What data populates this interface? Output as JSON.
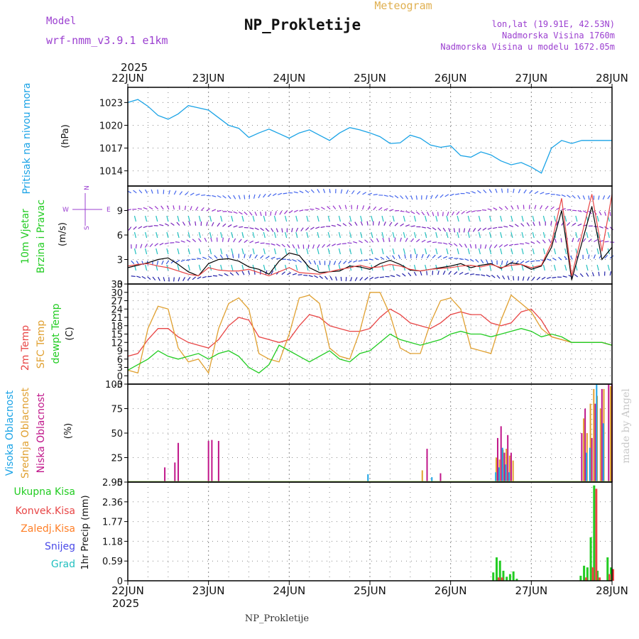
{
  "header": {
    "model_label": "Model",
    "model_name": "wrf-nmm_v3.9.1 e1km",
    "title": "NP_Prokletije",
    "product": "Meteogram",
    "lonlat": "lon,lat (19.91E, 42.53N)",
    "altitude": "Nadmorska Visina 1760m",
    "model_altitude": "Nadmorska Visina u modelu 1672.05m",
    "year": "2025",
    "footer_title": "NP_Prokletije",
    "credit": "made by Angel"
  },
  "colors": {
    "pressure": "#1aa3e6",
    "temp2m": "#e84545",
    "sfc_temp": "#e0a030",
    "dewpoint": "#22cc22",
    "wind_speed": "#000000",
    "gust": "#e84545",
    "high_cloud": "#1aa3e6",
    "mid_cloud": "#e0a030",
    "low_cloud": "#c0168a",
    "total_precip": "#22cc22",
    "conv_precip": "#e84545",
    "strat_precip": "#ff7f27",
    "snow": "#4a4ae8",
    "hail": "#22c0c0",
    "title_purple": "#9b3fd0"
  },
  "chart_data": [
    {
      "id": "pressure",
      "type": "line",
      "ylabel": "Pritisak na nivou mora",
      "unit": "(hPa)",
      "ylim": [
        1012,
        1025
      ],
      "yticks": [
        1014,
        1017,
        1020,
        1023
      ],
      "x_ticks": [
        "22JUN",
        "23JUN",
        "24JUN",
        "25JUN",
        "26JUN",
        "27JUN",
        "28JUN"
      ],
      "x_hours": [
        0,
        3,
        6,
        9,
        12,
        15,
        18,
        21,
        24,
        27,
        30,
        33,
        36,
        39,
        42,
        45,
        48,
        51,
        54,
        57,
        60,
        63,
        66,
        69,
        72,
        75,
        78,
        81,
        84,
        87,
        90,
        93,
        96,
        99,
        102,
        105,
        108,
        111,
        114,
        117,
        120,
        123,
        126,
        129,
        132,
        135,
        138,
        141,
        144
      ],
      "series": [
        {
          "values": [
            1023.0,
            1023.4,
            1022.5,
            1021.3,
            1020.8,
            1021.5,
            1022.6,
            1022.3,
            1022.0,
            1021.0,
            1020.0,
            1019.6,
            1018.4,
            1019.0,
            1019.5,
            1018.9,
            1018.3,
            1019.0,
            1019.4,
            1018.7,
            1018.0,
            1019.0,
            1019.7,
            1019.4,
            1019.0,
            1018.5,
            1017.6,
            1017.7,
            1018.7,
            1018.3,
            1017.4,
            1017.1,
            1017.3,
            1016.0,
            1015.8,
            1016.5,
            1016.1,
            1015.3,
            1014.8,
            1015.1,
            1014.5,
            1013.7,
            1017.0,
            1018.0,
            1017.6,
            1018.0,
            1018.0,
            1018.0,
            1018.0
          ]
        }
      ]
    },
    {
      "id": "wind",
      "type": "line",
      "ylabel": [
        "10m Vjetar",
        "Brzina i Pravac"
      ],
      "unit": "(m/s)",
      "ylim": [
        0,
        12
      ],
      "yticks": [
        0,
        3,
        6,
        9
      ],
      "compass": {
        "w": "W",
        "e": "E",
        "n": "N",
        "s": "S"
      },
      "series": [
        {
          "name": "speed",
          "values": [
            2.0,
            2.3,
            2.6,
            3.0,
            3.2,
            2.4,
            1.5,
            1.0,
            2.5,
            3.0,
            3.1,
            2.8,
            2.1,
            1.8,
            1.2,
            2.8,
            3.8,
            3.5,
            2.0,
            1.4,
            1.5,
            1.6,
            2.2,
            2.1,
            1.8,
            2.5,
            2.9,
            2.4,
            1.7,
            1.6,
            1.8,
            2.0,
            2.2,
            2.5,
            2.0,
            2.3,
            2.5,
            1.9,
            2.6,
            2.4,
            1.8,
            2.2,
            4.5,
            9.0,
            0.5,
            5.0,
            9.5,
            3.0,
            4.5
          ]
        },
        {
          "name": "gust",
          "values": [
            2.2,
            2.4,
            2.5,
            2.2,
            2.0,
            1.6,
            1.2,
            1.0,
            2.0,
            1.7,
            1.6,
            1.6,
            1.8,
            1.4,
            1.0,
            1.5,
            2.0,
            1.4,
            1.3,
            1.2,
            1.5,
            1.8,
            2.0,
            2.3,
            2.0,
            2.1,
            2.4,
            2.2,
            1.8,
            1.6,
            1.8,
            1.9,
            2.0,
            2.2,
            2.3,
            2.1,
            2.4,
            2.0,
            2.3,
            2.4,
            2.0,
            2.3,
            5.0,
            10.5,
            1.0,
            6.0,
            11.0,
            4.0,
            11.0
          ]
        }
      ],
      "barb_levels": [
        {
          "level": 1,
          "color": "#2222aa"
        },
        {
          "level": 3,
          "color": "#3355dd"
        },
        {
          "level": 5,
          "color": "#8833cc"
        },
        {
          "level": 7,
          "color": "#7722bb"
        },
        {
          "level": 9,
          "color": "#9933cc"
        },
        {
          "level": 11,
          "color": "#4466ee"
        }
      ]
    },
    {
      "id": "temperature",
      "type": "line",
      "ylabel": [
        "2m Temp",
        "SFC Temp",
        "dewpt Temp"
      ],
      "unit": "(C)",
      "ylim": [
        -3,
        33
      ],
      "yticks": [
        -3,
        0,
        3,
        6,
        9,
        12,
        15,
        18,
        21,
        24,
        27,
        30,
        33
      ],
      "series": [
        {
          "name": "2m Temp",
          "values": [
            7,
            8,
            13,
            17,
            17,
            14,
            12,
            11,
            10,
            13,
            18,
            21,
            20,
            14,
            13,
            12,
            13,
            18,
            22,
            21,
            18,
            17,
            16,
            16,
            17,
            21,
            24,
            22,
            19,
            18,
            17,
            19,
            22,
            23,
            22,
            22,
            19,
            18,
            19,
            23,
            24,
            20,
            14,
            13,
            12,
            12,
            12,
            12,
            11
          ]
        },
        {
          "name": "SFC Temp",
          "values": [
            2,
            1,
            17,
            25,
            24,
            10,
            5,
            6,
            1,
            17,
            26,
            28,
            24,
            8,
            6,
            5,
            15,
            28,
            29,
            26,
            10,
            7,
            6,
            16,
            30,
            30,
            22,
            10,
            8,
            8,
            19,
            27,
            28,
            24,
            10,
            9,
            8,
            20,
            29,
            26,
            23,
            17,
            14,
            13,
            12,
            12,
            12,
            12,
            11
          ]
        },
        {
          "name": "dewpt Temp",
          "values": [
            2,
            4,
            6,
            9,
            7,
            6,
            7,
            8,
            6,
            8,
            9,
            7,
            3,
            1,
            4,
            11,
            9,
            7,
            5,
            7,
            9,
            6,
            5,
            8,
            9,
            12,
            15,
            13,
            12,
            11,
            12,
            13,
            15,
            16,
            15,
            15,
            14,
            15,
            16,
            17,
            16,
            14,
            15,
            14,
            12,
            12,
            12,
            12,
            11
          ]
        }
      ]
    },
    {
      "id": "clouds",
      "type": "bar",
      "ylabel": [
        "Visoka Oblacnost",
        "Srednja Oblacnost",
        "Niska Oblacnost"
      ],
      "unit": "(%)",
      "ylim": [
        0,
        100
      ],
      "yticks": [
        0,
        25,
        50,
        75,
        100
      ],
      "series": [
        {
          "name": "Niska Oblacnost",
          "points": [
            [
              11,
              15
            ],
            [
              14,
              20
            ],
            [
              15,
              40
            ],
            [
              24,
              42
            ],
            [
              25,
              43
            ],
            [
              27,
              42
            ],
            [
              89,
              34
            ],
            [
              93,
              9
            ],
            [
              110,
              45
            ],
            [
              111,
              57
            ],
            [
              112,
              30
            ],
            [
              113,
              48
            ],
            [
              114,
              30
            ],
            [
              135,
              50
            ],
            [
              136,
              75
            ],
            [
              138,
              45
            ],
            [
              139,
              80
            ],
            [
              141,
              95
            ],
            [
              143,
              100
            ],
            [
              144,
              100
            ]
          ]
        },
        {
          "name": "Srednja Oblacnost",
          "points": [
            [
              88,
              12
            ],
            [
              110,
              25
            ],
            [
              111,
              23
            ],
            [
              112,
              33
            ],
            [
              113,
              34
            ],
            [
              114,
              27
            ],
            [
              115,
              22
            ],
            [
              136,
              65
            ],
            [
              137,
              50
            ],
            [
              138,
              80
            ],
            [
              139,
              95
            ],
            [
              140,
              88
            ],
            [
              141,
              75
            ],
            [
              142,
              95
            ],
            [
              144,
              98
            ]
          ]
        },
        {
          "name": "Visoka Oblacnost",
          "points": [
            [
              71,
              8
            ],
            [
              90,
              5
            ],
            [
              109,
              10
            ],
            [
              110,
              15
            ],
            [
              111,
              35
            ],
            [
              112,
              18
            ],
            [
              113,
              10
            ],
            [
              136,
              30
            ],
            [
              137,
              35
            ],
            [
              139,
              100
            ],
            [
              141,
              60
            ]
          ]
        }
      ]
    },
    {
      "id": "precip",
      "type": "bar",
      "ylabel": "1hr Precip",
      "unit": "(mm)",
      "ylim": [
        0,
        2.95
      ],
      "yticks": [
        0,
        0.59,
        1.18,
        1.77,
        2.36,
        2.95
      ],
      "legend": [
        "Ukupna Kisa",
        "Konvek.Kisa",
        "Zaledj.Kisa",
        "Snijeg",
        "Grad"
      ],
      "series": [
        {
          "name": "Ukupna Kisa",
          "points": [
            [
              109,
              0.25
            ],
            [
              110,
              0.7
            ],
            [
              111,
              0.6
            ],
            [
              112,
              0.3
            ],
            [
              113,
              0.12
            ],
            [
              114,
              0.2
            ],
            [
              115,
              0.28
            ],
            [
              116,
              0.06
            ],
            [
              135,
              0.15
            ],
            [
              136,
              0.45
            ],
            [
              137,
              0.4
            ],
            [
              138,
              1.3
            ],
            [
              139,
              2.85
            ],
            [
              140,
              0.3
            ],
            [
              143,
              0.7
            ],
            [
              144,
              0.4
            ]
          ]
        },
        {
          "name": "Konvek.Kisa",
          "points": [
            [
              110,
              0.1
            ],
            [
              111,
              0.1
            ],
            [
              136,
              0.1
            ],
            [
              138,
              0.4
            ],
            [
              139,
              2.75
            ],
            [
              140,
              0.1
            ],
            [
              143,
              0.2
            ],
            [
              144,
              0.35
            ]
          ]
        }
      ]
    }
  ]
}
